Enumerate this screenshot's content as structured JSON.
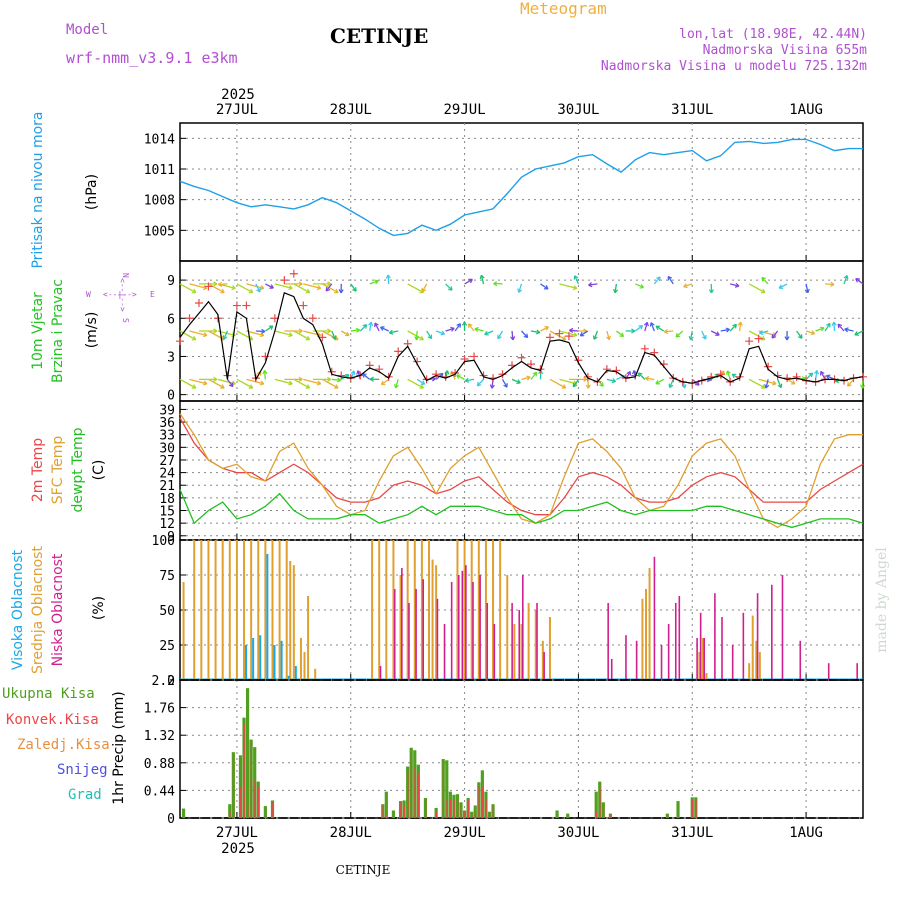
{
  "header": {
    "model_label": "Model",
    "model_name": "wrf-nmm_v3.9.1 e3km",
    "station": "CETINJE",
    "title": "Meteogram",
    "lonlat": "lon,lat (18.98E, 42.44N)",
    "elevation": "Nadmorska Visina 655m",
    "model_elevation": "Nadmorska Visina u modelu 725.132m",
    "footer_station": "CETINJE",
    "watermark": "made by Angel"
  },
  "time_axis": {
    "year": "2025",
    "days": [
      "27JUL",
      "28JUL",
      "29JUL",
      "30JUL",
      "31JUL",
      "1AUG"
    ],
    "start": "26JUL 12:00",
    "end": "1AUG 12:00"
  },
  "colors": {
    "pressure": "#1ea0e8",
    "wind_label": "#22c422",
    "t2m": "#e84848",
    "sfc": "#e0a030",
    "dew": "#20c020",
    "cloud_high": "#18a8e8",
    "cloud_mid": "#e0a030",
    "cloud_low": "#d02090",
    "precip_total": "#50a020",
    "precip_conv": "#e84848",
    "precip_frozen": "#e89040",
    "snow": "#5050e0",
    "hail": "#20c0b0",
    "header_purple": "#b050d0",
    "header_orange": "#f0b040"
  },
  "chart_data": [
    {
      "type": "line",
      "panel": "pressure",
      "ylabel_main": "Pritisak na nivou mora",
      "ylabel_unit": "(hPa)",
      "yticks": [
        "1005",
        "1008",
        "1011",
        "1014"
      ],
      "ylim": [
        1002,
        1015.5
      ],
      "x_hours": [
        0,
        3,
        6,
        9,
        12,
        15,
        18,
        21,
        24,
        27,
        30,
        33,
        36,
        39,
        42,
        45,
        48,
        51,
        54,
        57,
        60,
        63,
        66,
        69,
        72,
        75,
        78,
        81,
        84,
        87,
        90,
        93,
        96,
        99,
        102,
        105,
        108,
        111,
        114,
        117,
        120,
        123,
        126,
        129,
        132,
        135,
        138,
        141,
        144
      ],
      "values": [
        1009.8,
        1009.3,
        1008.9,
        1008.3,
        1007.7,
        1007.3,
        1007.5,
        1007.3,
        1007.1,
        1007.5,
        1008.2,
        1007.7,
        1006.9,
        1006.1,
        1005.2,
        1004.5,
        1004.7,
        1005.5,
        1005.0,
        1005.6,
        1006.5,
        1006.8,
        1007.1,
        1008.6,
        1010.2,
        1011.0,
        1011.3,
        1011.6,
        1012.2,
        1012.4,
        1011.5,
        1010.7,
        1011.9,
        1012.6,
        1012.4,
        1012.6,
        1012.8,
        1011.8,
        1012.3,
        1013.6,
        1013.7,
        1013.5,
        1013.6,
        1013.9,
        1013.9,
        1013.4,
        1012.8,
        1013.0,
        1013.0
      ]
    },
    {
      "type": "line",
      "panel": "wind",
      "ylabel_main": "10m Vjetar",
      "ylabel_sub": "Brzina i Pravac",
      "ylabel_unit": "(m/s)",
      "compass": {
        "n": "N",
        "s": "S",
        "e": "E",
        "w": "W",
        "arrow": "<--|-->"
      },
      "yticks": [
        "0",
        "3",
        "6",
        "9"
      ],
      "ylim": [
        -0.5,
        10.5
      ],
      "x_hours": [
        0,
        2,
        4,
        6,
        8,
        10,
        12,
        14,
        16,
        18,
        20,
        22,
        24,
        26,
        28,
        30,
        32,
        34,
        36,
        38,
        40,
        42,
        44,
        46,
        48,
        50,
        52,
        54,
        56,
        58,
        60,
        62,
        64,
        66,
        68,
        70,
        72,
        74,
        76,
        78,
        80,
        82,
        84,
        86,
        88,
        90,
        92,
        94,
        96,
        98,
        100,
        102,
        104,
        106,
        108,
        110,
        112,
        114,
        116,
        118,
        120,
        122,
        124,
        126,
        128,
        130,
        132,
        134,
        136,
        138,
        140,
        142,
        144
      ],
      "speed": [
        4.5,
        5.5,
        6.4,
        7.3,
        6.3,
        1.2,
        6.5,
        6.0,
        1.2,
        2.5,
        5.0,
        8.0,
        7.7,
        6.0,
        5.5,
        4.0,
        1.6,
        1.4,
        1.3,
        1.5,
        2.1,
        1.8,
        1.3,
        3.0,
        3.8,
        2.4,
        1.1,
        1.5,
        1.3,
        1.6,
        2.6,
        2.7,
        1.4,
        1.2,
        1.5,
        2.1,
        2.6,
        2.1,
        1.9,
        4.2,
        4.3,
        4.1,
        2.5,
        1.3,
        1.0,
        1.9,
        1.8,
        1.3,
        1.4,
        3.3,
        3.1,
        2.2,
        1.3,
        1.0,
        0.9,
        1.1,
        1.3,
        1.5,
        1.0,
        1.3,
        3.6,
        3.8,
        2.0,
        1.4,
        1.2,
        1.3,
        1.1,
        1.0,
        1.2,
        1.2,
        1.1,
        1.3,
        1.4
      ],
      "gust": [
        4.2,
        6.0,
        7.2,
        8.5,
        6.0,
        1.5,
        7.0,
        7.0,
        1.3,
        3.0,
        6.0,
        9.0,
        9.5,
        7.0,
        6.0,
        4.5,
        1.8,
        1.5,
        1.3,
        1.5,
        2.3,
        2.0,
        1.4,
        3.4,
        4.0,
        2.6,
        1.2,
        1.6,
        1.4,
        1.7,
        2.8,
        3.0,
        1.5,
        1.3,
        1.6,
        2.3,
        2.9,
        2.4,
        2.0,
        4.5,
        4.8,
        4.6,
        2.7,
        1.4,
        1.0,
        2.0,
        1.9,
        1.3,
        1.5,
        3.6,
        3.3,
        2.4,
        1.3,
        1.0,
        0.9,
        1.1,
        1.4,
        1.6,
        1.0,
        1.4,
        4.2,
        4.4,
        2.2,
        1.5,
        1.3,
        1.4,
        1.1,
        1.0,
        1.2,
        1.2,
        1.1,
        1.3,
        1.4
      ]
    },
    {
      "type": "line",
      "panel": "temperature",
      "ylabel_t2m": "2m Temp",
      "ylabel_sfc": "SFC Temp",
      "ylabel_dew": "dewpt Temp",
      "ylabel_unit": "(C)",
      "yticks": [
        "9",
        "12",
        "15",
        "18",
        "21",
        "24",
        "27",
        "30",
        "33",
        "36",
        "39"
      ],
      "ylim": [
        8,
        41
      ],
      "x_hours": [
        0,
        3,
        6,
        9,
        12,
        15,
        18,
        21,
        24,
        27,
        30,
        33,
        36,
        39,
        42,
        45,
        48,
        51,
        54,
        57,
        60,
        63,
        66,
        69,
        72,
        75,
        78,
        81,
        84,
        87,
        90,
        93,
        96,
        99,
        102,
        105,
        108,
        111,
        114,
        117,
        120,
        123,
        126,
        129,
        132,
        135,
        138,
        141,
        144
      ],
      "series": [
        {
          "name": "2m Temp",
          "values": [
            37,
            31,
            27,
            25,
            24,
            24,
            22,
            24,
            26,
            24,
            21,
            18,
            17,
            17,
            18,
            21,
            22,
            21,
            19,
            20,
            22,
            23,
            20,
            17,
            15,
            14,
            14,
            18,
            23,
            24,
            23,
            21,
            18,
            17,
            17,
            18,
            21,
            23,
            24,
            23,
            20,
            17,
            17,
            17,
            17,
            20,
            22,
            24,
            26
          ]
        },
        {
          "name": "SFC Temp",
          "values": [
            38,
            33,
            27,
            25,
            26,
            23,
            22,
            29,
            31,
            25,
            21,
            16,
            14,
            15,
            22,
            28,
            30,
            25,
            19,
            25,
            28,
            30,
            24,
            18,
            13,
            12,
            14,
            23,
            31,
            32,
            29,
            25,
            18,
            15,
            16,
            21,
            28,
            31,
            32,
            28,
            20,
            13,
            11,
            13,
            16,
            26,
            32,
            33,
            33
          ]
        },
        {
          "name": "dewpt Temp",
          "values": [
            20,
            12,
            15,
            17,
            13,
            14,
            16,
            19,
            15,
            13,
            13,
            13,
            14,
            14,
            12,
            13,
            14,
            16,
            14,
            16,
            16,
            16,
            15,
            14,
            14,
            12,
            13,
            15,
            15,
            16,
            17,
            15,
            14,
            15,
            15,
            15,
            15,
            16,
            16,
            15,
            14,
            13,
            12,
            11,
            12,
            13,
            13,
            13,
            12
          ]
        }
      ]
    },
    {
      "type": "bar",
      "panel": "clouds",
      "ylabel_high": "Visoka Oblacnost",
      "ylabel_mid": "Srednja Oblacnost",
      "ylabel_low": "Niska Oblacnost",
      "ylabel_unit": "(%)",
      "yticks": [
        "0",
        "25",
        "50",
        "75",
        "100"
      ],
      "ylim": [
        0,
        100
      ],
      "mid_cloud": [
        [
          1,
          70
        ],
        [
          4,
          100
        ],
        [
          6,
          100
        ],
        [
          8,
          100
        ],
        [
          10,
          100
        ],
        [
          12,
          100
        ],
        [
          14,
          100
        ],
        [
          16,
          100
        ],
        [
          18,
          100
        ],
        [
          20,
          100
        ],
        [
          22,
          100
        ],
        [
          24,
          100
        ],
        [
          26,
          100
        ],
        [
          28,
          100
        ],
        [
          30,
          100
        ],
        [
          31,
          85
        ],
        [
          32,
          82
        ],
        [
          34,
          30
        ],
        [
          35,
          20
        ],
        [
          36,
          60
        ],
        [
          38,
          8
        ],
        [
          54,
          100
        ],
        [
          56,
          100
        ],
        [
          58,
          100
        ],
        [
          60,
          100
        ],
        [
          62,
          75
        ],
        [
          64,
          100
        ],
        [
          66,
          100
        ],
        [
          68,
          100
        ],
        [
          70,
          100
        ],
        [
          71,
          86
        ],
        [
          72,
          82
        ],
        [
          78,
          100
        ],
        [
          80,
          100
        ],
        [
          82,
          100
        ],
        [
          84,
          100
        ],
        [
          86,
          100
        ],
        [
          88,
          100
        ],
        [
          90,
          100
        ],
        [
          92,
          75
        ],
        [
          94,
          40
        ],
        [
          96,
          40
        ],
        [
          98,
          55
        ],
        [
          100,
          50
        ],
        [
          102,
          28
        ],
        [
          104,
          45
        ],
        [
          130,
          58
        ],
        [
          131,
          65
        ],
        [
          132,
          80
        ],
        [
          146,
          20
        ],
        [
          147,
          30
        ],
        [
          148,
          5
        ],
        [
          160,
          12
        ],
        [
          161,
          46
        ],
        [
          162,
          28
        ],
        [
          163,
          20
        ]
      ],
      "high_cloud": [
        [
          18,
          25
        ],
        [
          20,
          30
        ],
        [
          22,
          32
        ],
        [
          24,
          90
        ],
        [
          26,
          25
        ],
        [
          28,
          28
        ],
        [
          30,
          3
        ],
        [
          32,
          10
        ]
      ],
      "low_cloud": [
        [
          56,
          10
        ],
        [
          60,
          65
        ],
        [
          62,
          80
        ],
        [
          64,
          55
        ],
        [
          66,
          65
        ],
        [
          68,
          72
        ],
        [
          72,
          58
        ],
        [
          74,
          40
        ],
        [
          76,
          70
        ],
        [
          78,
          75
        ],
        [
          79,
          78
        ],
        [
          80,
          82
        ],
        [
          82,
          70
        ],
        [
          84,
          75
        ],
        [
          86,
          55
        ],
        [
          88,
          40
        ],
        [
          93,
          55
        ],
        [
          95,
          50
        ],
        [
          96,
          75
        ],
        [
          100,
          55
        ],
        [
          102,
          20
        ],
        [
          120,
          55
        ],
        [
          121,
          15
        ],
        [
          125,
          32
        ],
        [
          128,
          28
        ],
        [
          133,
          88
        ],
        [
          135,
          25
        ],
        [
          137,
          40
        ],
        [
          139,
          55
        ],
        [
          140,
          60
        ],
        [
          145,
          30
        ],
        [
          146,
          48
        ],
        [
          147,
          30
        ],
        [
          150,
          62
        ],
        [
          152,
          45
        ],
        [
          155,
          25
        ],
        [
          158,
          48
        ],
        [
          162,
          62
        ],
        [
          166,
          68
        ],
        [
          169,
          75
        ],
        [
          174,
          28
        ],
        [
          182,
          12
        ],
        [
          190,
          12
        ]
      ]
    },
    {
      "type": "bar",
      "panel": "precipitation",
      "ylabel_unit": "1hr Precip (mm)",
      "legend": [
        "Ukupna Kisa",
        "Konvek.Kisa",
        "Zaledj.Kisa",
        "Snijeg",
        "Grad"
      ],
      "yticks": [
        "0",
        "0.44",
        "0.88",
        "1.32",
        "1.76",
        "2.2"
      ],
      "ylim": [
        0,
        2.2
      ],
      "bars": [
        [
          1,
          0.15,
          0.0
        ],
        [
          14,
          0.22,
          0.1
        ],
        [
          15,
          1.05,
          1.0
        ],
        [
          16,
          0.0,
          0.0
        ],
        [
          17,
          1.0,
          0.5
        ],
        [
          18,
          1.6,
          1.5
        ],
        [
          19,
          2.07,
          0.2
        ],
        [
          20,
          1.25,
          1.2
        ],
        [
          21,
          1.13,
          0.6
        ],
        [
          22,
          0.58,
          0.5
        ],
        [
          24,
          0.19,
          0.1
        ],
        [
          26,
          0.28,
          0.25
        ],
        [
          57,
          0.22,
          0.2
        ],
        [
          58,
          0.42,
          0.05
        ],
        [
          60,
          0.12,
          0.0
        ],
        [
          62,
          0.27,
          0.25
        ],
        [
          63,
          0.28,
          0.2
        ],
        [
          64,
          0.82,
          0.75
        ],
        [
          65,
          1.12,
          1.0
        ],
        [
          66,
          1.08,
          0.8
        ],
        [
          67,
          0.85,
          0.7
        ],
        [
          69,
          0.32,
          0.3
        ],
        [
          72,
          0.16,
          0.1
        ],
        [
          74,
          0.94,
          0.9
        ],
        [
          75,
          0.92,
          0.3
        ],
        [
          76,
          0.42,
          0.3
        ],
        [
          77,
          0.37,
          0.3
        ],
        [
          78,
          0.38,
          0.3
        ],
        [
          79,
          0.25,
          0.15
        ],
        [
          80,
          0.12,
          0.1
        ],
        [
          81,
          0.32,
          0.3
        ],
        [
          82,
          0.1,
          0.05
        ],
        [
          83,
          0.2,
          0.1
        ],
        [
          84,
          0.57,
          0.5
        ],
        [
          85,
          0.76,
          0.5
        ],
        [
          86,
          0.42,
          0.3
        ],
        [
          87,
          0.1,
          0.05
        ],
        [
          88,
          0.22,
          0.2
        ],
        [
          106,
          0.12,
          0.0
        ],
        [
          109,
          0.07,
          0.0
        ],
        [
          117,
          0.42,
          0.1
        ],
        [
          118,
          0.58,
          0.5
        ],
        [
          119,
          0.25,
          0.2
        ],
        [
          121,
          0.07,
          0.05
        ],
        [
          137,
          0.07,
          0.0
        ],
        [
          140,
          0.27,
          0.0
        ],
        [
          144,
          0.33,
          0.3
        ],
        [
          145,
          0.33,
          0.3
        ]
      ]
    }
  ]
}
